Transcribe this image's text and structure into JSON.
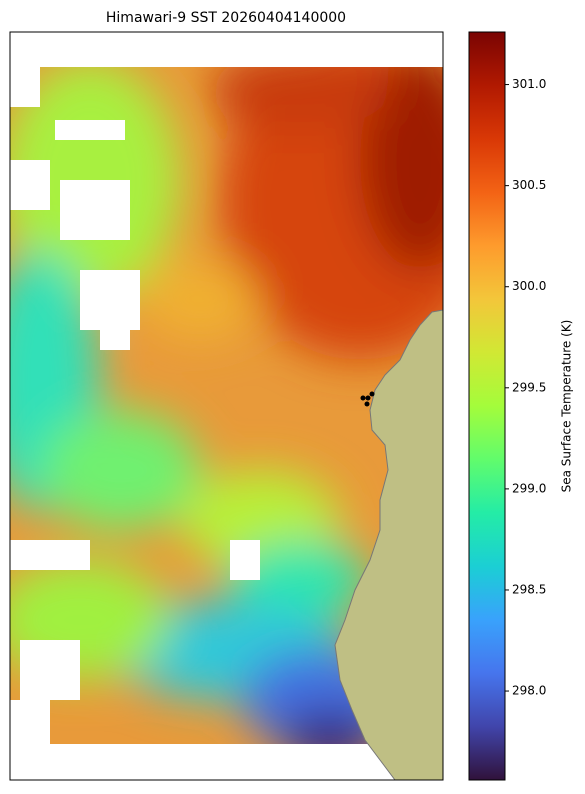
{
  "chart_data": {
    "type": "map",
    "title": "Himawari-9 SST 20260404140000",
    "colorbar_label": "Sea Surface Temperature (K)",
    "clim": [
      297.56,
      301.26
    ],
    "cticks": [
      {
        "value": 298,
        "label": "298.0"
      },
      {
        "value": 298.5,
        "label": "298.5"
      },
      {
        "value": 299,
        "label": "299.0"
      },
      {
        "value": 299.5,
        "label": "299.5"
      },
      {
        "value": 300,
        "label": "300.0"
      },
      {
        "value": 300.5,
        "label": "300.5"
      },
      {
        "value": 301,
        "label": "301.0"
      }
    ],
    "colormap": [
      "#30123b",
      "#4145ab",
      "#4675ed",
      "#39a2fc",
      "#1bcfd4",
      "#24eca6",
      "#61fc6c",
      "#a4fc3b",
      "#d1e834",
      "#f3c63a",
      "#fe9b2d",
      "#f36315",
      "#d93806",
      "#b11901",
      "#7a0403"
    ]
  }
}
